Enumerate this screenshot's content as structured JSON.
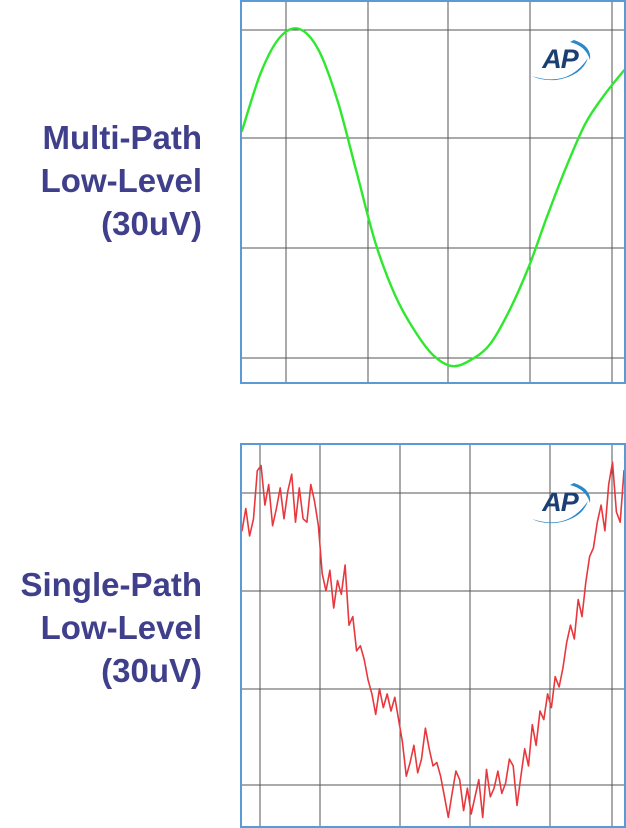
{
  "charts": [
    {
      "caption_lines": [
        "Multi-Path",
        "Low-Level",
        "(30uV)"
      ],
      "logo_text": "AP",
      "line_color": "#2ee82e",
      "frame_color": "#5b9bd5"
    },
    {
      "caption_lines": [
        "Single-Path",
        "Low-Level",
        "(30uV)"
      ],
      "logo_text": "AP",
      "line_color": "#e8383d",
      "frame_color": "#5b9bd5"
    }
  ],
  "chart_data": [
    {
      "type": "line",
      "title": "",
      "xlabel": "",
      "ylabel": "",
      "xlim": [
        0,
        1
      ],
      "ylim": [
        -1.17,
        1.22
      ],
      "grid": true,
      "x": [
        0,
        0.05,
        0.1,
        0.15,
        0.2,
        0.25,
        0.3,
        0.35,
        0.4,
        0.45,
        0.5,
        0.55,
        0.6,
        0.65,
        0.7,
        0.75,
        0.8,
        0.85,
        0.9,
        0.95,
        1.0
      ],
      "series": [
        {
          "values": [
            0.41,
            0.78,
            1.0,
            1.05,
            0.92,
            0.6,
            0.15,
            -0.3,
            -0.62,
            -0.84,
            -1.0,
            -1.07,
            -1.03,
            -0.93,
            -0.72,
            -0.45,
            -0.12,
            0.19,
            0.46,
            0.64,
            0.79
          ]
        }
      ]
    },
    {
      "type": "line",
      "title": "",
      "xlabel": "",
      "ylabel": "",
      "xlim": [
        0,
        1
      ],
      "ylim": [
        -1.17,
        1.05
      ],
      "grid": true,
      "x": [
        0.0,
        0.01,
        0.02,
        0.03,
        0.04,
        0.05,
        0.06,
        0.07,
        0.08,
        0.09,
        0.1,
        0.11,
        0.12,
        0.13,
        0.14,
        0.15,
        0.16,
        0.17,
        0.18,
        0.19,
        0.2,
        0.21,
        0.22,
        0.23,
        0.24,
        0.25,
        0.26,
        0.27,
        0.28,
        0.29,
        0.3,
        0.31,
        0.32,
        0.33,
        0.34,
        0.35,
        0.36,
        0.37,
        0.38,
        0.39,
        0.4,
        0.41,
        0.42,
        0.43,
        0.44,
        0.45,
        0.46,
        0.47,
        0.48,
        0.49,
        0.5,
        0.51,
        0.52,
        0.53,
        0.54,
        0.55,
        0.56,
        0.57,
        0.58,
        0.59,
        0.6,
        0.61,
        0.62,
        0.63,
        0.64,
        0.65,
        0.66,
        0.67,
        0.68,
        0.69,
        0.7,
        0.71,
        0.72,
        0.73,
        0.74,
        0.75,
        0.76,
        0.77,
        0.78,
        0.79,
        0.8,
        0.81,
        0.82,
        0.83,
        0.84,
        0.85,
        0.86,
        0.87,
        0.88,
        0.89,
        0.9,
        0.91,
        0.92,
        0.93,
        0.94,
        0.95,
        0.96,
        0.97,
        0.98,
        0.99,
        1.0
      ],
      "series": [
        {
          "values": [
            0.55,
            0.68,
            0.52,
            0.62,
            0.9,
            0.93,
            0.7,
            0.82,
            0.58,
            0.68,
            0.8,
            0.62,
            0.78,
            0.88,
            0.6,
            0.8,
            0.62,
            0.6,
            0.82,
            0.72,
            0.58,
            0.3,
            0.2,
            0.32,
            0.1,
            0.26,
            0.18,
            0.35,
            0.0,
            0.05,
            -0.15,
            -0.12,
            -0.2,
            -0.32,
            -0.4,
            -0.52,
            -0.37,
            -0.48,
            -0.4,
            -0.5,
            -0.42,
            -0.55,
            -0.68,
            -0.88,
            -0.8,
            -0.7,
            -0.86,
            -0.78,
            -0.6,
            -0.72,
            -0.82,
            -0.8,
            -0.88,
            -1.0,
            -1.12,
            -0.98,
            -0.85,
            -0.9,
            -1.08,
            -0.95,
            -1.1,
            -1.0,
            -0.9,
            -1.12,
            -0.84,
            -1.0,
            -0.95,
            -0.85,
            -0.98,
            -0.92,
            -0.78,
            -0.82,
            -1.05,
            -0.88,
            -0.72,
            -0.82,
            -0.58,
            -0.7,
            -0.5,
            -0.55,
            -0.4,
            -0.48,
            -0.3,
            -0.36,
            -0.25,
            -0.1,
            0.0,
            -0.08,
            0.15,
            0.05,
            0.25,
            0.4,
            0.45,
            0.6,
            0.7,
            0.55,
            0.82,
            0.95,
            0.66,
            0.6,
            0.9
          ]
        }
      ]
    }
  ]
}
